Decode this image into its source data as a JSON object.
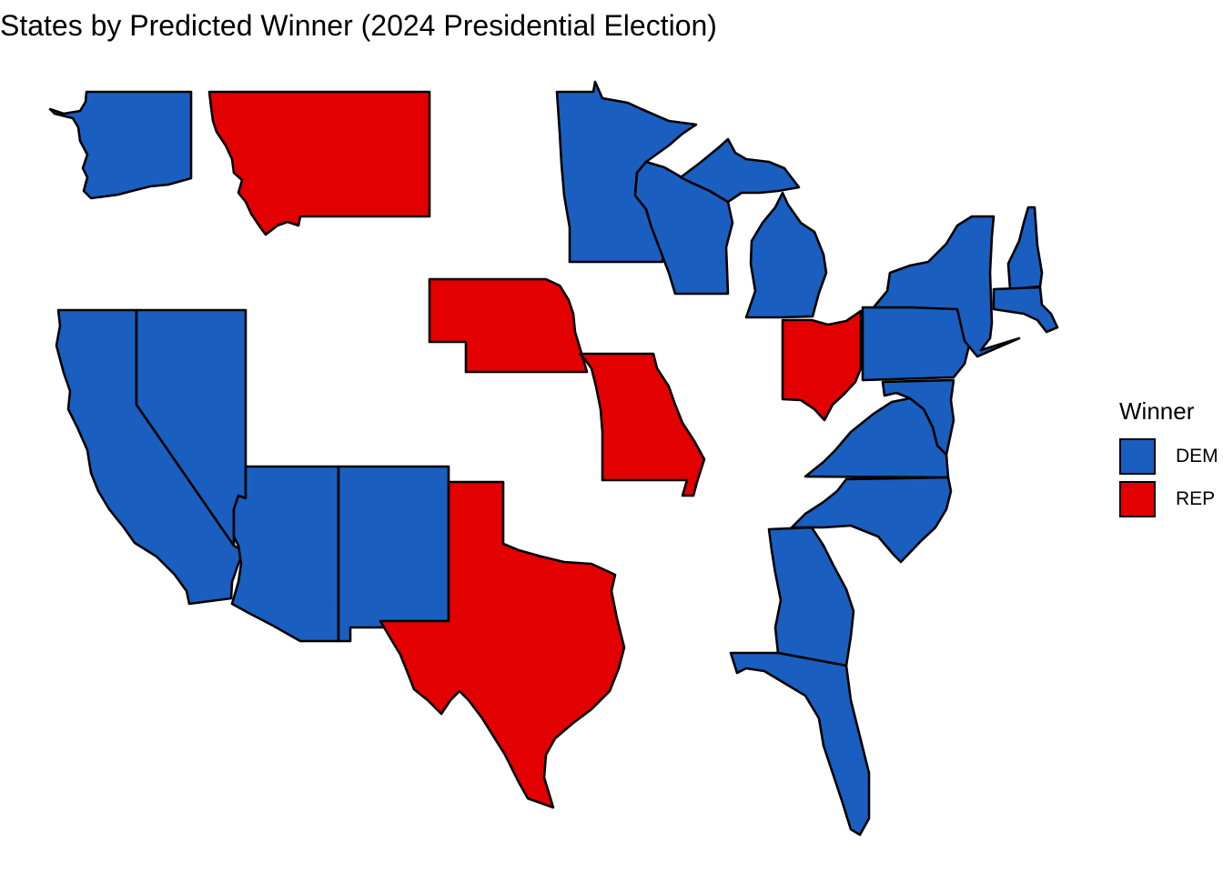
{
  "title": "States by Predicted Winner (2024 Presidential Election)",
  "colors": {
    "DEM": "#1a5fbf",
    "REP": "#e30000"
  },
  "legend": {
    "title": "Winner",
    "items": [
      {
        "key": "DEM",
        "label": "DEM"
      },
      {
        "key": "REP",
        "label": "REP"
      }
    ]
  },
  "states": [
    {
      "name": "Washington",
      "winner": "DEM"
    },
    {
      "name": "Montana",
      "winner": "REP"
    },
    {
      "name": "California",
      "winner": "DEM"
    },
    {
      "name": "Nevada",
      "winner": "DEM"
    },
    {
      "name": "Arizona",
      "winner": "DEM"
    },
    {
      "name": "New Mexico",
      "winner": "DEM"
    },
    {
      "name": "Texas",
      "winner": "REP"
    },
    {
      "name": "Nebraska",
      "winner": "REP"
    },
    {
      "name": "Missouri",
      "winner": "REP"
    },
    {
      "name": "Minnesota",
      "winner": "DEM"
    },
    {
      "name": "Wisconsin",
      "winner": "DEM"
    },
    {
      "name": "Michigan",
      "winner": "DEM"
    },
    {
      "name": "Ohio",
      "winner": "REP"
    },
    {
      "name": "Pennsylvania",
      "winner": "DEM"
    },
    {
      "name": "New York",
      "winner": "DEM"
    },
    {
      "name": "New Hampshire",
      "winner": "DEM"
    },
    {
      "name": "Massachusetts",
      "winner": "DEM"
    },
    {
      "name": "Maryland",
      "winner": "DEM"
    },
    {
      "name": "Virginia",
      "winner": "DEM"
    },
    {
      "name": "North Carolina",
      "winner": "DEM"
    },
    {
      "name": "Georgia",
      "winner": "DEM"
    },
    {
      "name": "Florida",
      "winner": "DEM"
    }
  ]
}
